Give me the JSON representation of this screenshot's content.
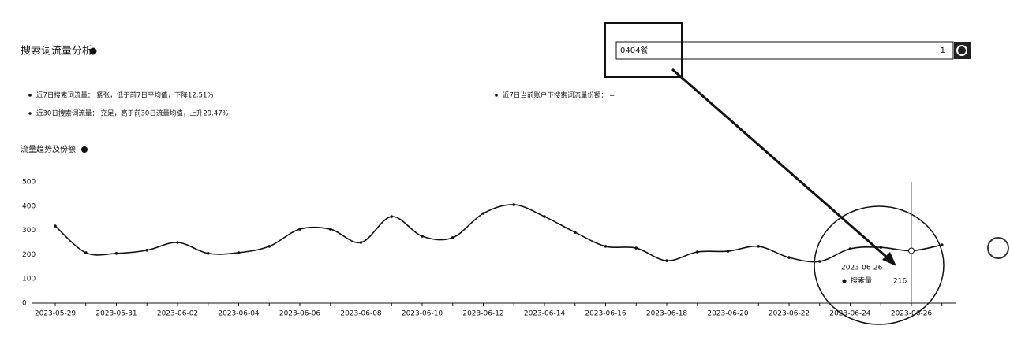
{
  "header": {
    "title": "搜索词流量分析",
    "search_text": "0404餐",
    "search_count": "1"
  },
  "bullets": [
    "近7日搜索词流量：  紧张，低于前7日平均值，下降12.51%",
    "近30日搜索词流量：  充足，高于前30日流量均值，上升29.47%",
    "近7日当前账户下搜索词流量份额：  --"
  ],
  "section_title": "流量趋势及份额",
  "chart_data": {
    "type": "line",
    "categories": [
      "2023-05-29",
      null,
      "2023-05-31",
      null,
      "2023-06-02",
      null,
      "2023-06-04",
      null,
      "2023-06-06",
      null,
      "2023-06-08",
      null,
      "2023-06-10",
      null,
      "2023-06-12",
      null,
      "2023-06-14",
      null,
      "2023-06-16",
      null,
      "2023-06-18",
      null,
      "2023-06-20",
      null,
      "2023-06-22",
      null,
      "2023-06-24",
      null,
      "2023-06-26",
      null
    ],
    "series": [
      {
        "name": "搜索量",
        "color": "#111111",
        "values": [
          318,
          208,
          205,
          218,
          250,
          205,
          208,
          234,
          305,
          305,
          250,
          357,
          276,
          270,
          370,
          406,
          357,
          292,
          234,
          227,
          175,
          211,
          214,
          234,
          188,
          172,
          224,
          230,
          216,
          240
        ]
      }
    ],
    "ylim": [
      0,
      500
    ],
    "yticks": [
      0,
      100,
      200,
      300,
      400,
      500
    ],
    "tooltip": {
      "date": "2023-06-26"
    }
  }
}
